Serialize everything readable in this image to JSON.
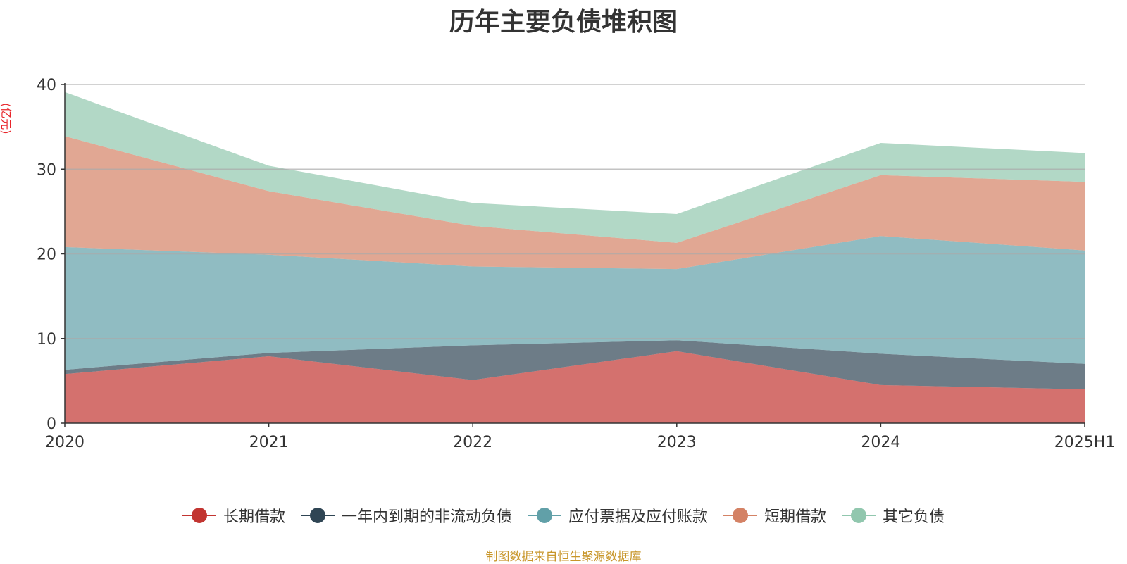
{
  "chart_data": {
    "type": "area",
    "stacked": true,
    "title": "历年主要负债堆积图",
    "ylabel": "(亿元)",
    "categories": [
      "2020",
      "2021",
      "2022",
      "2023",
      "2024",
      "2025H1"
    ],
    "ylim": [
      0,
      40
    ],
    "yticks": [
      0,
      10,
      20,
      30,
      40
    ],
    "grid": true,
    "legend_position": "bottom",
    "series": [
      {
        "name": "长期借款",
        "color": "#c23531",
        "values": [
          5.8,
          7.9,
          5.1,
          8.5,
          4.5,
          4.0
        ]
      },
      {
        "name": "一年内到期的非流动负债",
        "color": "#2f4554",
        "values": [
          0.5,
          0.4,
          4.1,
          1.3,
          3.7,
          3.0
        ]
      },
      {
        "name": "应付票据及应付账款",
        "color": "#61a0a8",
        "values": [
          14.5,
          11.6,
          9.3,
          8.4,
          13.9,
          13.4
        ]
      },
      {
        "name": "短期借款",
        "color": "#d48265",
        "values": [
          13.1,
          7.5,
          4.8,
          3.1,
          7.2,
          8.1
        ]
      },
      {
        "name": "其它负债",
        "color": "#91c7ae",
        "values": [
          5.2,
          3.0,
          2.7,
          3.4,
          3.8,
          3.4
        ]
      }
    ]
  },
  "source_note": "制图数据来自恒生聚源数据库"
}
